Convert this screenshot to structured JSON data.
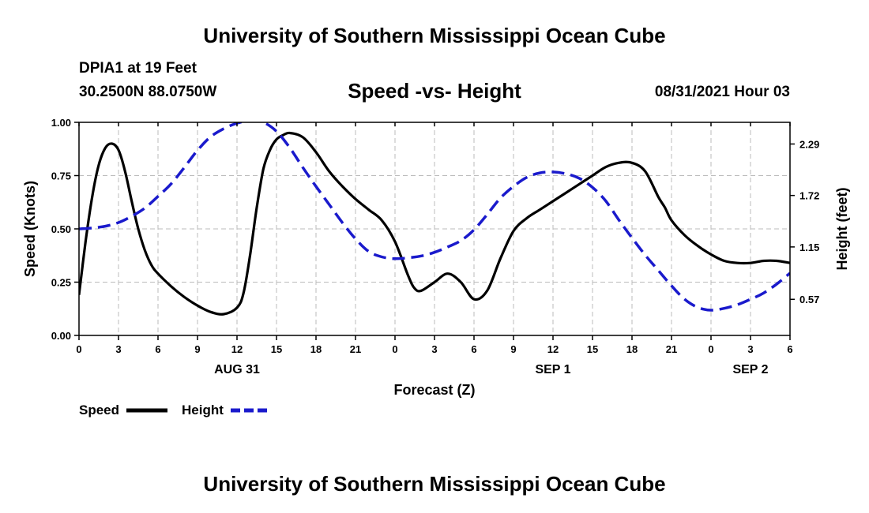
{
  "header": {
    "title": "University of Southern Mississippi Ocean Cube",
    "station": "DPIA1 at 19 Feet",
    "coords": "30.2500N  88.0750W",
    "run": "08/31/2021 Hour 03"
  },
  "footer": {
    "title": "University of Southern Mississippi Ocean Cube"
  },
  "colors": {
    "speed": "#000000",
    "height": "#1a1acc",
    "grid": "#bbbbbb"
  },
  "chart_data": {
    "type": "line",
    "title": "Speed -vs- Height",
    "xlabel": "Forecast (Z)",
    "ylabel": "Speed (Knots)",
    "y2label": "Height (feet)",
    "x_range_hours": [
      0,
      54
    ],
    "x_ticks": [
      "0",
      "3",
      "6",
      "9",
      "12",
      "15",
      "18",
      "21",
      "0",
      "3",
      "6",
      "9",
      "12",
      "15",
      "18",
      "21",
      "0",
      "3",
      "6"
    ],
    "date_labels": [
      {
        "label": "AUG 31",
        "hour": 12
      },
      {
        "label": "SEP 1",
        "hour": 36
      },
      {
        "label": "SEP 2",
        "hour": 51
      }
    ],
    "ylim": [
      0,
      1
    ],
    "y_ticks": [
      "0.00",
      "0.25",
      "0.50",
      "0.75",
      "1.00"
    ],
    "y2lim": [
      0.17,
      2.53
    ],
    "y2_ticks": [
      "0.57",
      "1.15",
      "1.72",
      "2.29"
    ],
    "series": [
      {
        "name": "Speed",
        "axis": "left",
        "style": "solid",
        "x": [
          0,
          0.5,
          1,
          1.5,
          2,
          2.5,
          3,
          3.5,
          4,
          4.5,
          5,
          5.5,
          6,
          7,
          8,
          9,
          10,
          11,
          12,
          12.5,
          13,
          13.5,
          14,
          14.5,
          15,
          15.5,
          16,
          17,
          18,
          19,
          20,
          21,
          22,
          23,
          24,
          25,
          25.5,
          26,
          27,
          28,
          29,
          30,
          31,
          32,
          33,
          34,
          35,
          36,
          37,
          38,
          39,
          40,
          41,
          42,
          43,
          44,
          44.5,
          45,
          46,
          47,
          48,
          49,
          50,
          51,
          52,
          53,
          54
        ],
        "values": [
          0.19,
          0.44,
          0.65,
          0.8,
          0.88,
          0.9,
          0.87,
          0.77,
          0.63,
          0.5,
          0.4,
          0.33,
          0.29,
          0.23,
          0.18,
          0.14,
          0.11,
          0.1,
          0.13,
          0.2,
          0.38,
          0.6,
          0.78,
          0.87,
          0.92,
          0.94,
          0.95,
          0.93,
          0.86,
          0.77,
          0.7,
          0.64,
          0.59,
          0.54,
          0.44,
          0.28,
          0.22,
          0.21,
          0.25,
          0.29,
          0.25,
          0.17,
          0.21,
          0.36,
          0.49,
          0.55,
          0.59,
          0.63,
          0.67,
          0.71,
          0.75,
          0.79,
          0.81,
          0.81,
          0.77,
          0.65,
          0.6,
          0.54,
          0.47,
          0.42,
          0.38,
          0.35,
          0.34,
          0.34,
          0.35,
          0.35,
          0.34
        ]
      },
      {
        "name": "Height",
        "axis": "right",
        "style": "dashed",
        "x": [
          0,
          1,
          2,
          3,
          4,
          5,
          6,
          7,
          8,
          9,
          10,
          11,
          12,
          13,
          14,
          15,
          16,
          17,
          18,
          19,
          20,
          21,
          22,
          23,
          24,
          25,
          26,
          27,
          28,
          29,
          30,
          31,
          32,
          33,
          34,
          35,
          36,
          37,
          38,
          39,
          40,
          41,
          42,
          43,
          44,
          45,
          46,
          47,
          48,
          49,
          50,
          51,
          52,
          53,
          54
        ],
        "values": [
          1.35,
          1.36,
          1.38,
          1.42,
          1.49,
          1.58,
          1.71,
          1.85,
          2.03,
          2.22,
          2.37,
          2.46,
          2.52,
          2.55,
          2.53,
          2.43,
          2.25,
          2.03,
          1.82,
          1.62,
          1.42,
          1.24,
          1.1,
          1.04,
          1.02,
          1.03,
          1.05,
          1.09,
          1.15,
          1.22,
          1.34,
          1.51,
          1.69,
          1.82,
          1.92,
          1.97,
          1.98,
          1.96,
          1.91,
          1.81,
          1.66,
          1.45,
          1.25,
          1.06,
          0.89,
          0.72,
          0.57,
          0.48,
          0.45,
          0.47,
          0.51,
          0.57,
          0.64,
          0.74,
          0.86
        ]
      }
    ],
    "legend": {
      "position": "bottom-left"
    }
  }
}
